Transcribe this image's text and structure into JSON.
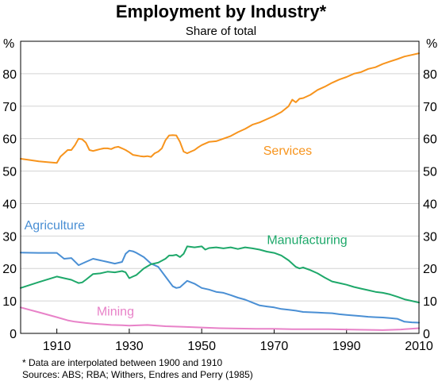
{
  "chart_data": {
    "type": "line",
    "title": "Employment by Industry*",
    "subtitle": "Share of total",
    "y_unit_left": "%",
    "y_unit_right": "%",
    "xlim": [
      1900,
      2010
    ],
    "ylim": [
      0,
      90
    ],
    "x_ticks": [
      1910,
      1930,
      1950,
      1970,
      1990,
      2010
    ],
    "y_ticks": [
      0,
      10,
      20,
      30,
      40,
      50,
      60,
      70,
      80
    ],
    "grid": "horizontal",
    "legend": "inline labels",
    "footnotes": [
      "*  Data are interpolated between 1900 and 1910",
      "Sources: ABS; RBA; Withers, Endres and Perry (1985)"
    ],
    "series": [
      {
        "name": "Services",
        "color": "#f7941d",
        "x": [
          1900,
          1902,
          1905,
          1908,
          1910,
          1911,
          1912,
          1913,
          1914,
          1915,
          1916,
          1917,
          1918,
          1919,
          1920,
          1921,
          1922,
          1923,
          1924,
          1925,
          1926,
          1927,
          1928,
          1929,
          1930,
          1931,
          1932,
          1933,
          1934,
          1935,
          1936,
          1937,
          1938,
          1939,
          1940,
          1941,
          1942,
          1943,
          1944,
          1945,
          1946,
          1947,
          1948,
          1949,
          1950,
          1952,
          1954,
          1956,
          1958,
          1960,
          1962,
          1964,
          1966,
          1968,
          1970,
          1972,
          1974,
          1975,
          1976,
          1977,
          1978,
          1980,
          1982,
          1984,
          1986,
          1988,
          1990,
          1992,
          1994,
          1996,
          1998,
          2000,
          2002,
          2004,
          2006,
          2008,
          2010
        ],
        "values": [
          53.8,
          53.5,
          53.0,
          52.7,
          52.5,
          54.5,
          55.5,
          56.5,
          56.5,
          58.0,
          60.0,
          59.8,
          58.8,
          56.5,
          56.2,
          56.5,
          56.8,
          57.0,
          57.0,
          56.8,
          57.3,
          57.5,
          57.0,
          56.5,
          55.8,
          55.0,
          54.8,
          54.6,
          54.5,
          54.6,
          54.4,
          55.5,
          56.0,
          57.0,
          59.5,
          61.0,
          61.1,
          61.0,
          59.0,
          56.0,
          55.5,
          56.0,
          56.5,
          57.3,
          58.0,
          59.0,
          59.2,
          60.0,
          60.8,
          62.0,
          63.0,
          64.3,
          65.0,
          66.0,
          67.0,
          68.2,
          70.0,
          72.0,
          71.2,
          72.3,
          72.5,
          73.5,
          75.0,
          76.0,
          77.2,
          78.2,
          79.0,
          80.0,
          80.5,
          81.5,
          82.0,
          83.0,
          83.8,
          84.5,
          85.3,
          85.8,
          86.3
        ]
      },
      {
        "name": "Agriculture",
        "color": "#4a8fd4",
        "x": [
          1900,
          1905,
          1910,
          1912,
          1914,
          1916,
          1918,
          1920,
          1922,
          1924,
          1926,
          1928,
          1929,
          1930,
          1931,
          1932,
          1934,
          1936,
          1938,
          1940,
          1942,
          1943,
          1944,
          1946,
          1948,
          1950,
          1952,
          1954,
          1956,
          1958,
          1960,
          1962,
          1964,
          1966,
          1968,
          1970,
          1972,
          1974,
          1976,
          1978,
          1980,
          1982,
          1984,
          1986,
          1988,
          1990,
          1992,
          1994,
          1996,
          1998,
          2000,
          2002,
          2004,
          2006,
          2008,
          2010
        ],
        "values": [
          24.9,
          24.8,
          24.8,
          23.0,
          23.2,
          21.0,
          22.0,
          23.0,
          22.5,
          22.0,
          21.5,
          22.0,
          24.5,
          25.5,
          25.3,
          24.8,
          23.5,
          21.5,
          20.5,
          17.5,
          14.5,
          14.0,
          14.2,
          16.2,
          15.3,
          14.0,
          13.5,
          12.8,
          12.5,
          11.8,
          11.0,
          10.4,
          9.5,
          8.6,
          8.3,
          8.0,
          7.5,
          7.3,
          7.0,
          6.6,
          6.5,
          6.4,
          6.3,
          6.2,
          5.9,
          5.7,
          5.5,
          5.3,
          5.1,
          5.0,
          4.9,
          4.7,
          4.5,
          3.6,
          3.4,
          3.3
        ]
      },
      {
        "name": "Manufacturing",
        "color": "#1ea86a",
        "x": [
          1900,
          1905,
          1910,
          1912,
          1914,
          1915,
          1916,
          1917,
          1918,
          1920,
          1922,
          1924,
          1926,
          1928,
          1929,
          1930,
          1931,
          1932,
          1934,
          1936,
          1938,
          1940,
          1941,
          1942,
          1943,
          1944,
          1945,
          1946,
          1948,
          1950,
          1951,
          1952,
          1954,
          1956,
          1958,
          1960,
          1962,
          1964,
          1966,
          1968,
          1970,
          1972,
          1974,
          1976,
          1977,
          1978,
          1980,
          1982,
          1984,
          1986,
          1988,
          1990,
          1992,
          1994,
          1996,
          1998,
          2000,
          2002,
          2004,
          2006,
          2008,
          2010
        ],
        "values": [
          14.0,
          15.8,
          17.5,
          17.0,
          16.5,
          16.0,
          15.5,
          15.7,
          16.5,
          18.3,
          18.5,
          19.0,
          18.8,
          19.2,
          18.8,
          17.0,
          17.5,
          18.0,
          20.0,
          21.3,
          21.8,
          23.0,
          24.0,
          24.0,
          24.2,
          23.5,
          24.5,
          26.8,
          26.5,
          26.8,
          25.8,
          26.3,
          26.5,
          26.2,
          26.5,
          26.0,
          26.5,
          26.2,
          25.8,
          25.2,
          24.8,
          24.0,
          22.5,
          20.5,
          20.0,
          20.3,
          19.5,
          18.5,
          17.2,
          16.0,
          15.5,
          15.0,
          14.3,
          13.8,
          13.3,
          12.8,
          12.5,
          12.0,
          11.3,
          10.5,
          10.0,
          9.5
        ]
      },
      {
        "name": "Mining",
        "color": "#e882c8",
        "x": [
          1900,
          1905,
          1910,
          1913,
          1915,
          1918,
          1920,
          1925,
          1928,
          1930,
          1935,
          1940,
          1945,
          1950,
          1955,
          1960,
          1965,
          1970,
          1975,
          1980,
          1985,
          1990,
          1995,
          2000,
          2005,
          2010
        ],
        "values": [
          8.0,
          6.5,
          5.0,
          4.0,
          3.6,
          3.2,
          3.0,
          2.6,
          2.5,
          2.4,
          2.6,
          2.2,
          2.0,
          1.8,
          1.6,
          1.5,
          1.4,
          1.4,
          1.3,
          1.3,
          1.3,
          1.2,
          1.1,
          1.0,
          1.2,
          1.6
        ]
      }
    ],
    "series_labels": [
      {
        "series": "Services",
        "text": "Services",
        "x": 1967,
        "y": 55
      },
      {
        "series": "Agriculture",
        "text": "Agriculture",
        "x": 1901,
        "y": 32
      },
      {
        "series": "Manufacturing",
        "text": "Manufacturing",
        "x": 1968,
        "y": 27.5
      },
      {
        "series": "Mining",
        "text": "Mining",
        "x": 1921,
        "y": 5.5
      }
    ]
  }
}
